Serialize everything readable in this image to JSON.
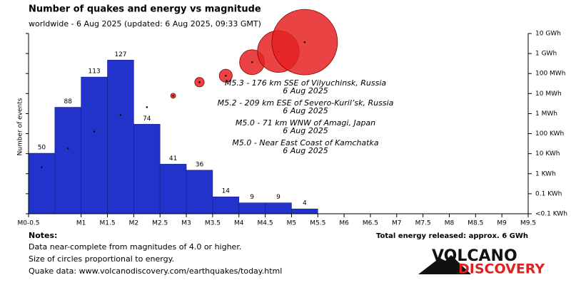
{
  "chart_data": {
    "type": "histogram",
    "title": "Number of quakes and energy vs magnitude",
    "subtitle": "worldwide -  6 Aug 2025 (updated: 6 Aug 2025, 09:33 GMT)",
    "ylabel": "Number of events",
    "bins": [
      0,
      0.5,
      1,
      1.5,
      2,
      2.5,
      3,
      3.5,
      4,
      4.5,
      5,
      5.5
    ],
    "values": [
      50,
      88,
      113,
      127,
      74,
      41,
      36,
      14,
      9,
      9,
      4
    ],
    "color": "#2233cc",
    "xlim": [
      0,
      9.5
    ],
    "xticks": [
      {
        "value": 0,
        "label": "M0-0.5"
      },
      {
        "value": 1,
        "label": "M1"
      },
      {
        "value": 1.5,
        "label": "M1.5"
      },
      {
        "value": 2,
        "label": "M2"
      },
      {
        "value": 2.5,
        "label": "M2.5"
      },
      {
        "value": 3,
        "label": "M3"
      },
      {
        "value": 3.5,
        "label": "M3.5"
      },
      {
        "value": 4,
        "label": "M4"
      },
      {
        "value": 4.5,
        "label": "M4.5"
      },
      {
        "value": 5,
        "label": "M5"
      },
      {
        "value": 5.5,
        "label": "M5.5"
      },
      {
        "value": 6,
        "label": "M6"
      },
      {
        "value": 6.5,
        "label": "M6.5"
      },
      {
        "value": 7,
        "label": "M7"
      },
      {
        "value": 7.5,
        "label": "M7.5"
      },
      {
        "value": 8,
        "label": "M8"
      },
      {
        "value": 8.5,
        "label": "M8.5"
      },
      {
        "value": 9,
        "label": "M9"
      },
      {
        "value": 9.5,
        "label": "M9.5"
      }
    ],
    "ylim": [
      0,
      149
    ],
    "y2lim": [
      0.01,
      10000000
    ],
    "y2log": true,
    "y2ticks": [
      {
        "value": 10000000,
        "label": "10 GWh"
      },
      {
        "value": 1000000,
        "label": "1 GWh"
      },
      {
        "value": 100000,
        "label": "100 MWh"
      },
      {
        "value": 10000,
        "label": "10 MWh"
      },
      {
        "value": 1000,
        "label": "1 MWh"
      },
      {
        "value": 100,
        "label": "100 KWh"
      },
      {
        "value": 10,
        "label": "10 KWh"
      },
      {
        "value": 1,
        "label": "1 KWh"
      },
      {
        "value": 0.1,
        "label": "0.1 KWh"
      },
      {
        "value": 0.01,
        "label": "<0.1 KWh"
      }
    ],
    "energy": {
      "axis": "y2",
      "color": "#e52222",
      "values": [
        2.1,
        18,
        126,
        850,
        2100,
        7800,
        37000,
        78000,
        370000,
        1260000,
        3700000
      ]
    },
    "annotations": [
      {
        "text": "M5.3 - 176 km SSE of Vilyuchinsk, Russia",
        "date": "6 Aug 2025"
      },
      {
        "text": "M5.2 - 209 km ESE of Severo-Kuril’sk, Russia",
        "date": "6 Aug 2025"
      },
      {
        "text": "M5.0 - 71 km WNW of Amagi, Japan",
        "date": "6 Aug 2025"
      },
      {
        "text": "M5.0 - Near East Coast of Kamchatka",
        "date": "6 Aug 2025"
      }
    ],
    "total": "Total energy released: approx. 6 GWh"
  },
  "notes": {
    "heading": "Notes:",
    "lines": [
      "Data near-complete from magnitudes of 4.0 or higher.",
      "Size of circles proportional to energy.",
      "Quake data: www.volcanodiscovery.com/earthquakes/today.html"
    ]
  },
  "logo": {
    "top": "VOLCANO",
    "bottom": "DISCOVERY"
  }
}
